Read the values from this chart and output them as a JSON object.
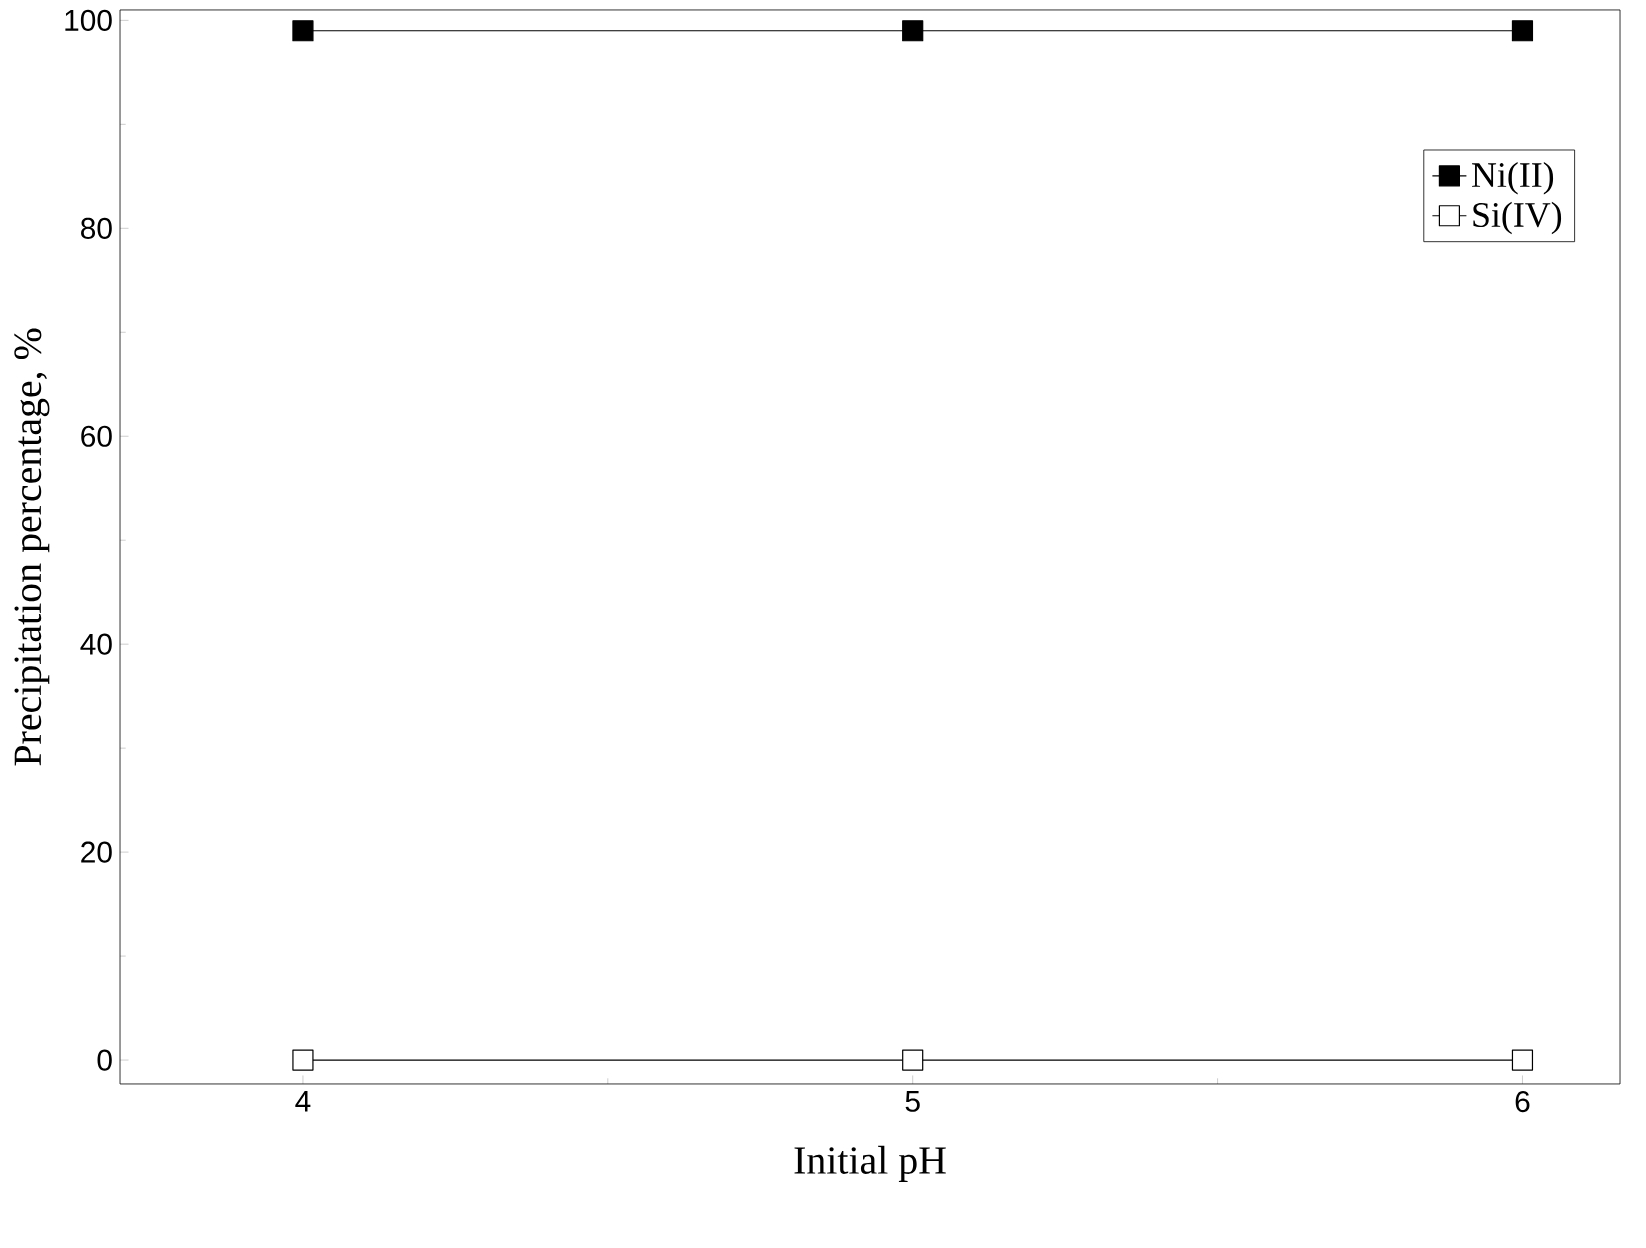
{
  "chart_data": {
    "type": "line",
    "xlabel": "Initial pH",
    "ylabel": "Precipitation percentage, %",
    "x": [
      4,
      5,
      6
    ],
    "series": [
      {
        "name": "Ni(II)",
        "color": "#000000",
        "values": [
          99,
          99,
          99
        ],
        "marker": "square"
      },
      {
        "name": "Si(IV)",
        "color": "#000000",
        "values": [
          0,
          0,
          0
        ],
        "marker": "square"
      }
    ],
    "xlim": [
      3.7,
      6.16
    ],
    "ylim": [
      -2.3,
      101
    ],
    "xticks": [
      4,
      5,
      6
    ],
    "yticks": [
      0,
      20,
      40,
      60,
      80,
      100
    ],
    "legend": "top right",
    "grid": false,
    "line_style": "solid"
  }
}
